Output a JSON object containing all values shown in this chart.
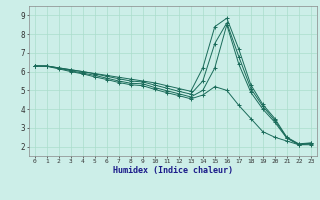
{
  "xlabel": "Humidex (Indice chaleur)",
  "bg_color": "#cceee8",
  "grid_color": "#aaddcc",
  "line_color": "#1a6b5a",
  "xlim": [
    -0.5,
    23.5
  ],
  "ylim": [
    1.5,
    9.5
  ],
  "xticks": [
    0,
    1,
    2,
    3,
    4,
    5,
    6,
    7,
    8,
    9,
    10,
    11,
    12,
    13,
    14,
    15,
    16,
    17,
    18,
    19,
    20,
    21,
    22,
    23
  ],
  "yticks": [
    2,
    3,
    4,
    5,
    6,
    7,
    8,
    9
  ],
  "lines": [
    [
      6.3,
      6.3,
      6.2,
      6.1,
      6.0,
      5.9,
      5.8,
      5.7,
      5.6,
      5.5,
      5.4,
      5.25,
      5.1,
      4.95,
      6.2,
      8.4,
      8.85,
      7.2,
      5.3,
      4.25,
      3.5,
      2.5,
      2.15,
      2.2
    ],
    [
      6.3,
      6.3,
      6.2,
      6.1,
      6.0,
      5.88,
      5.75,
      5.62,
      5.5,
      5.45,
      5.28,
      5.12,
      4.95,
      4.8,
      5.5,
      7.5,
      8.6,
      6.8,
      5.1,
      4.15,
      3.4,
      2.48,
      2.12,
      2.18
    ],
    [
      6.3,
      6.3,
      6.18,
      6.05,
      5.92,
      5.8,
      5.65,
      5.5,
      5.38,
      5.35,
      5.15,
      4.98,
      4.82,
      4.65,
      5.0,
      6.2,
      8.5,
      6.4,
      4.9,
      4.0,
      3.3,
      2.45,
      2.1,
      2.15
    ],
    [
      6.3,
      6.28,
      6.15,
      6.0,
      5.88,
      5.72,
      5.58,
      5.42,
      5.3,
      5.25,
      5.05,
      4.88,
      4.72,
      4.55,
      4.75,
      5.2,
      5.0,
      4.2,
      3.5,
      2.8,
      2.5,
      2.3,
      2.1,
      2.1
    ]
  ]
}
